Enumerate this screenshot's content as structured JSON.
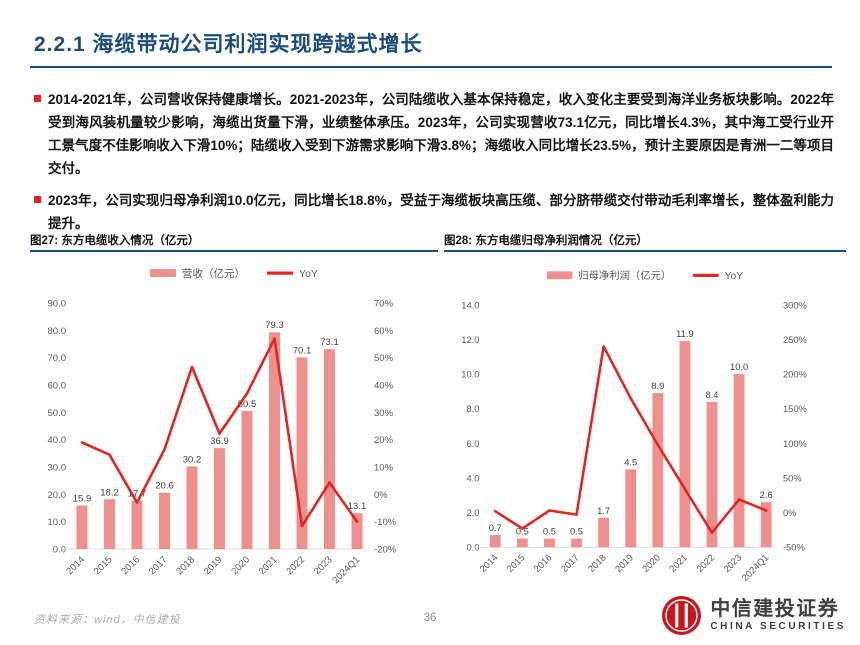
{
  "header": {
    "title": "2.2.1 海缆带动公司利润实现跨越式增长"
  },
  "bullets": [
    "2014-2021年，公司营收保持健康增长。2021-2023年，公司陆缆收入基本保持稳定，收入变化主要受到海洋业务板块影响。2022年受到海风装机量较少影响，海缆出货量下滑，业绩整体承压。2023年，公司实现营收73.1亿元，同比增长4.3%，其中海工受行业开工景气度不佳影响收入下滑10%；陆缆收入受到下游需求影响下滑3.8%；海缆收入同比增长23.5%，预计主要原因是青洲一二等项目交付。",
    "2023年，公司实现归母净利润10.0亿元，同比增长18.8%，受益于海缆板块高压缆、部分脐带缆交付带动毛利率增长，整体盈利能力提升。"
  ],
  "figures": [
    {
      "caption": "图27: 东方电缆收入情况（亿元）"
    },
    {
      "caption": "图28: 东方电缆归母净利润情况（亿元）"
    }
  ],
  "chart_data": [
    {
      "type": "bar+line",
      "title": "东方电缆收入情况（亿元）",
      "legend_position": "top",
      "gridlines": false,
      "categories": [
        "2014",
        "2015",
        "2016",
        "2017",
        "2018",
        "2019",
        "2020",
        "2021",
        "2022",
        "2023",
        "2024Q1"
      ],
      "series": [
        {
          "name": "营收（亿元）",
          "type": "bar",
          "axis": "left",
          "values": [
            15.9,
            18.2,
            17.7,
            20.6,
            30.2,
            36.9,
            50.5,
            79.3,
            70.1,
            73.1,
            13.1
          ]
        },
        {
          "name": "YoY",
          "type": "line",
          "axis": "right",
          "unit": "%",
          "values": [
            19,
            14.5,
            -3,
            16.4,
            46.6,
            22.2,
            36.9,
            57,
            -11.6,
            4.3,
            -10
          ]
        }
      ],
      "left_axis": {
        "min": 0,
        "max": 90,
        "step": 10,
        "decimals": 1
      },
      "right_axis": {
        "min": -20,
        "max": 70,
        "step": 10,
        "unit": "%"
      }
    },
    {
      "type": "bar+line",
      "title": "东方电缆归母净利润情况（亿元）",
      "legend_position": "top",
      "gridlines": false,
      "categories": [
        "2014",
        "2015",
        "2016",
        "2017",
        "2018",
        "2019",
        "2020",
        "2021",
        "2022",
        "2023",
        "2024Q1"
      ],
      "series": [
        {
          "name": "归母净利润（亿元）",
          "type": "bar",
          "axis": "left",
          "values": [
            0.7,
            0.5,
            0.5,
            0.5,
            1.7,
            4.5,
            8.9,
            11.9,
            8.4,
            10.0,
            2.6
          ]
        },
        {
          "name": "YoY",
          "type": "line",
          "axis": "right",
          "unit": "%",
          "values": [
            2,
            -23,
            3,
            -3,
            240,
            165,
            98,
            34,
            -29,
            19,
            3
          ]
        }
      ],
      "left_axis": {
        "min": 0,
        "max": 14,
        "step": 2,
        "decimals": 1
      },
      "right_axis": {
        "min": -50,
        "max": 300,
        "step": 50,
        "unit": "%"
      }
    }
  ],
  "footer": {
    "source": "资料来源：wind，中信建投",
    "page_number": "36",
    "logo_cn": "中信建投证券",
    "logo_en": "CHINA SECURITIES"
  },
  "colors": {
    "accent_navy": "#1D4C77",
    "bar_fill": "#F0908E",
    "line_red": "#DF2721",
    "bullet_red": "#E02521",
    "axis_text": "#595959",
    "value_label": "#404040",
    "axis_line": "#D9D9D9"
  }
}
